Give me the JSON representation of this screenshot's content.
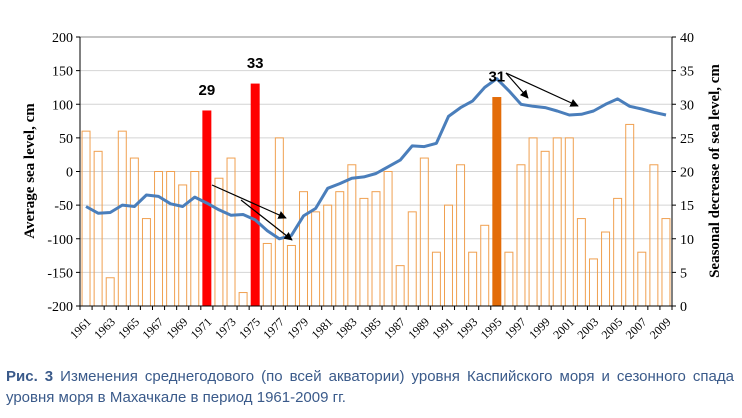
{
  "chart_data": {
    "type": "bar+line",
    "title": "",
    "x_labels": [
      "1961",
      "1963",
      "1965",
      "1967",
      "1969",
      "1971",
      "1973",
      "1975",
      "1977",
      "1979",
      "1981",
      "1983",
      "1985",
      "1987",
      "1989",
      "1991",
      "1993",
      "1995",
      "1997",
      "1999",
      "2001",
      "2003",
      "2005",
      "2007",
      "2009"
    ],
    "years": [
      1961,
      1962,
      1963,
      1964,
      1965,
      1966,
      1967,
      1968,
      1969,
      1970,
      1971,
      1972,
      1973,
      1974,
      1975,
      1976,
      1977,
      1978,
      1979,
      1980,
      1981,
      1982,
      1983,
      1984,
      1985,
      1986,
      1987,
      1988,
      1989,
      1990,
      1991,
      1992,
      1993,
      1994,
      1995,
      1996,
      1997,
      1998,
      1999,
      2000,
      2001,
      2002,
      2003,
      2004,
      2005,
      2006,
      2007,
      2008,
      2009
    ],
    "left_axis": {
      "label": "Average sea level, cm",
      "min": -200,
      "max": 200,
      "step": 50
    },
    "right_axis": {
      "label": "Seasonal decrease of sea level, cm",
      "min": 0,
      "max": 40,
      "step": 5
    },
    "series": [
      {
        "name": "Average sea level",
        "type": "line",
        "axis": "left",
        "color": "#4a7ebb",
        "values": [
          -52,
          -62,
          -61,
          -50,
          -52,
          -35,
          -37,
          -48,
          -52,
          -38,
          -47,
          -57,
          -65,
          -64,
          -72,
          -88,
          -100,
          -95,
          -66,
          -55,
          -25,
          -18,
          -10,
          -8,
          -3,
          7,
          17,
          38,
          37,
          42,
          82,
          95,
          105,
          125,
          138,
          120,
          100,
          97,
          95,
          90,
          84,
          85,
          90,
          100,
          108,
          97,
          93,
          88,
          84
        ]
      },
      {
        "name": "Seasonal decrease of sea level",
        "type": "bar",
        "axis": "right",
        "values": [
          26,
          23,
          4.2,
          26,
          22,
          13,
          20,
          20,
          18,
          20,
          29,
          19,
          22,
          2,
          33,
          9.3,
          25,
          9,
          17,
          14,
          15,
          17,
          21,
          16,
          17,
          20,
          6,
          14,
          22,
          8,
          15,
          21,
          8,
          12,
          31,
          8,
          21,
          25,
          23,
          25,
          25,
          13,
          7,
          11,
          16,
          27,
          8,
          21,
          13
        ],
        "highlight": {
          "1971": {
            "color": "#ff0000",
            "label": "29"
          },
          "1975": {
            "color": "#ff0000",
            "label": "33"
          },
          "1995": {
            "color": "#e36c09",
            "label": "31"
          }
        }
      }
    ],
    "annotation_labels": [
      "29",
      "33",
      "31"
    ]
  },
  "caption": {
    "lead": "Рис. 3",
    "text": " Изменения среднегодового (по всей акватории) уровня Каспийского моря и сезонного спада уровня моря в Махачкале в период 1961-2009 гг."
  }
}
